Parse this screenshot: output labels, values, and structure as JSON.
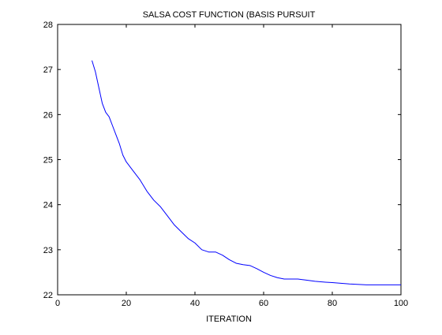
{
  "chart_data": {
    "type": "line",
    "title": "SALSA COST FUNCTION (BASIS PURSUIT",
    "xlabel": "ITERATION",
    "ylabel": "",
    "xlim": [
      0,
      100
    ],
    "ylim": [
      22,
      28
    ],
    "x_ticks": [
      0,
      20,
      40,
      60,
      80,
      100
    ],
    "y_ticks": [
      22,
      23,
      24,
      25,
      26,
      27,
      28
    ],
    "grid": false,
    "legend": "none",
    "series": [
      {
        "color": "#0000ff",
        "x": [
          10,
          11,
          12,
          13,
          14,
          15,
          16,
          17,
          18,
          19,
          20,
          22,
          24,
          26,
          28,
          30,
          32,
          34,
          36,
          38,
          40,
          42,
          44,
          46,
          48,
          50,
          52,
          54,
          56,
          58,
          60,
          62,
          64,
          66,
          68,
          70,
          72,
          75,
          78,
          80,
          85,
          90,
          95,
          100
        ],
        "y": [
          27.2,
          26.95,
          26.6,
          26.25,
          26.05,
          25.95,
          25.75,
          25.55,
          25.35,
          25.1,
          24.95,
          24.75,
          24.55,
          24.3,
          24.1,
          23.95,
          23.75,
          23.55,
          23.4,
          23.25,
          23.15,
          23.0,
          22.95,
          22.95,
          22.88,
          22.78,
          22.7,
          22.67,
          22.65,
          22.58,
          22.5,
          22.43,
          22.38,
          22.35,
          22.35,
          22.35,
          22.33,
          22.3,
          22.28,
          22.27,
          22.24,
          22.22,
          22.22,
          22.22
        ]
      }
    ]
  }
}
